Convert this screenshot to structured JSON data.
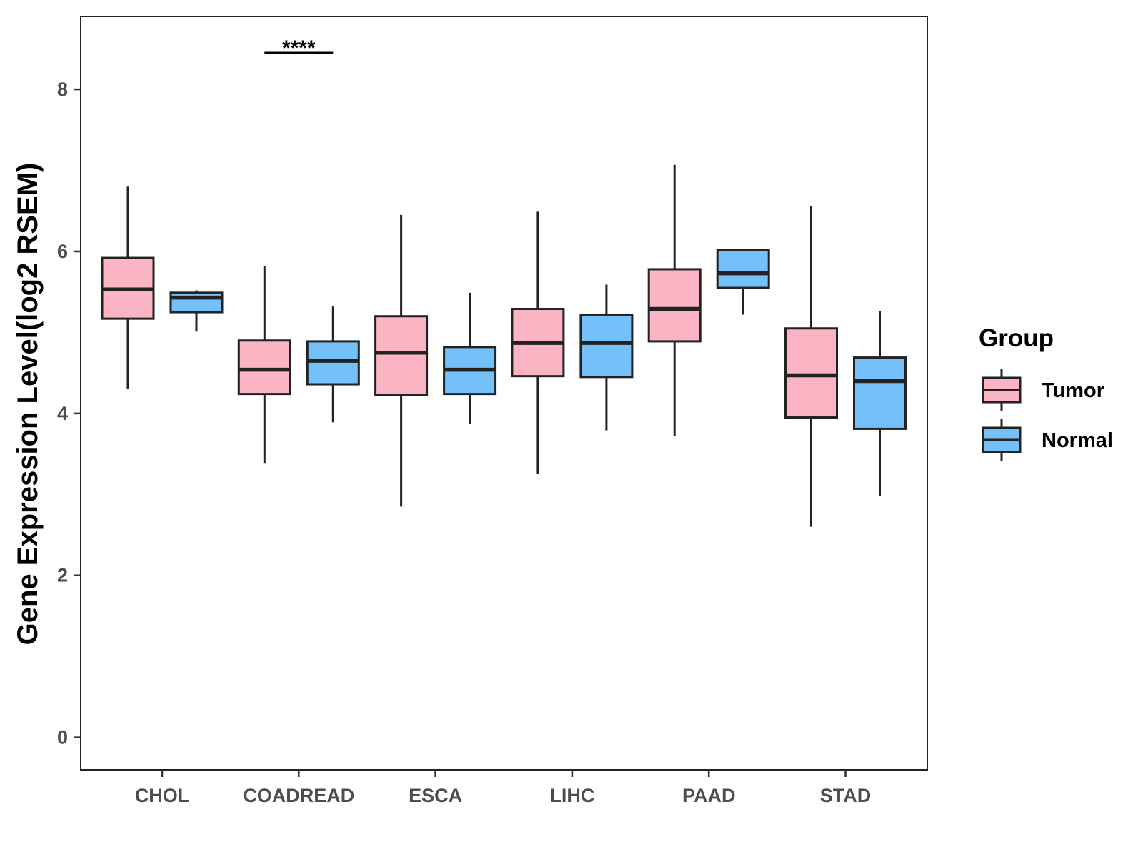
{
  "chart_data": {
    "type": "boxplot",
    "title": "",
    "xlabel": "",
    "ylabel": "Gene Expression Level(log2 RSEM)",
    "ylim": [
      -0.4,
      8.9
    ],
    "yticks": [
      0,
      2,
      4,
      6,
      8
    ],
    "yticklabels": [
      "0",
      "2",
      "4",
      "6",
      "8"
    ],
    "grid": false,
    "categories": [
      "CHOL",
      "COADREAD",
      "ESCA",
      "LIHC",
      "PAAD",
      "STAD"
    ],
    "legend": {
      "title": "Group",
      "position": "right",
      "entries": [
        "Tumor",
        "Normal"
      ]
    },
    "colors": {
      "Tumor": "#fbb4c4",
      "Normal": "#74c0f8",
      "outline": "#222222"
    },
    "series": [
      {
        "name": "Tumor",
        "boxes": [
          {
            "category": "CHOL",
            "whisker_low": 4.3,
            "q1": 5.17,
            "median": 5.53,
            "q3": 5.92,
            "whisker_high": 6.8
          },
          {
            "category": "COADREAD",
            "whisker_low": 3.38,
            "q1": 4.24,
            "median": 4.54,
            "q3": 4.9,
            "whisker_high": 5.82
          },
          {
            "category": "ESCA",
            "whisker_low": 2.85,
            "q1": 4.23,
            "median": 4.75,
            "q3": 5.2,
            "whisker_high": 6.45
          },
          {
            "category": "LIHC",
            "whisker_low": 3.25,
            "q1": 4.46,
            "median": 4.87,
            "q3": 5.29,
            "whisker_high": 6.49
          },
          {
            "category": "PAAD",
            "whisker_low": 3.72,
            "q1": 4.89,
            "median": 5.29,
            "q3": 5.78,
            "whisker_high": 7.07
          },
          {
            "category": "STAD",
            "whisker_low": 2.6,
            "q1": 3.95,
            "median": 4.47,
            "q3": 5.05,
            "whisker_high": 6.56
          }
        ]
      },
      {
        "name": "Normal",
        "boxes": [
          {
            "category": "CHOL",
            "whisker_low": 5.01,
            "q1": 5.25,
            "median": 5.43,
            "q3": 5.49,
            "whisker_high": 5.52
          },
          {
            "category": "COADREAD",
            "whisker_low": 3.89,
            "q1": 4.36,
            "median": 4.65,
            "q3": 4.89,
            "whisker_high": 5.32
          },
          {
            "category": "ESCA",
            "whisker_low": 3.87,
            "q1": 4.24,
            "median": 4.54,
            "q3": 4.82,
            "whisker_high": 5.49
          },
          {
            "category": "LIHC",
            "whisker_low": 3.79,
            "q1": 4.45,
            "median": 4.87,
            "q3": 5.22,
            "whisker_high": 5.59
          },
          {
            "category": "PAAD",
            "whisker_low": 5.22,
            "q1": 5.55,
            "median": 5.73,
            "q3": 6.02,
            "whisker_high": 6.02
          },
          {
            "category": "STAD",
            "whisker_low": 2.98,
            "q1": 3.81,
            "median": 4.4,
            "q3": 4.69,
            "whisker_high": 5.26
          }
        ]
      }
    ],
    "annotations": [
      {
        "category": "COADREAD",
        "text": "****",
        "y": 8.45
      }
    ]
  }
}
